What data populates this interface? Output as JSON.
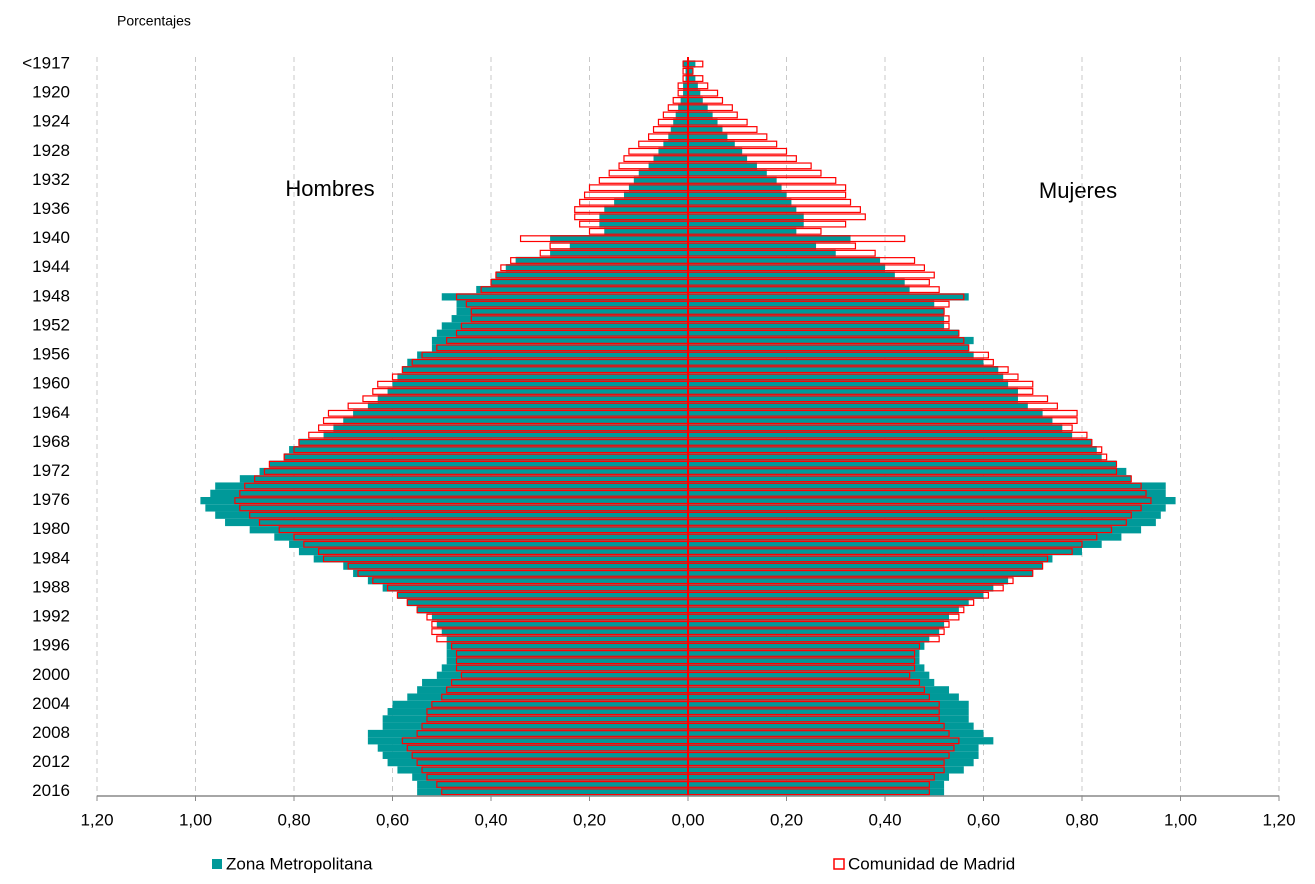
{
  "chart_data": {
    "type": "pyramid",
    "axis_label": "Porcentajes",
    "left_label": "Hombres",
    "right_label": "Mujeres",
    "categories": [
      "<1917",
      null,
      null,
      null,
      "1920",
      null,
      null,
      null,
      "1924",
      null,
      null,
      null,
      "1928",
      null,
      null,
      null,
      "1932",
      null,
      null,
      null,
      "1936",
      null,
      null,
      null,
      "1940",
      null,
      null,
      null,
      "1944",
      null,
      null,
      null,
      "1948",
      null,
      null,
      null,
      "1952",
      null,
      null,
      null,
      "1956",
      null,
      null,
      null,
      "1960",
      null,
      null,
      null,
      "1964",
      null,
      null,
      null,
      "1968",
      null,
      null,
      null,
      "1972",
      null,
      null,
      null,
      "1976",
      null,
      null,
      null,
      "1980",
      null,
      null,
      null,
      "1984",
      null,
      null,
      null,
      "1988",
      null,
      null,
      null,
      "1992",
      null,
      null,
      null,
      "1996",
      null,
      null,
      null,
      "2000",
      null,
      null,
      null,
      "2004",
      null,
      null,
      null,
      "2008",
      null,
      null,
      null,
      "2012",
      null,
      null,
      null,
      "2016"
    ],
    "series": [
      {
        "name": "Zona Metropolitana",
        "color": "#009999",
        "style": "fill",
        "left": [
          -0.01,
          -0.005,
          -0.005,
          -0.01,
          -0.01,
          -0.015,
          -0.02,
          -0.025,
          -0.03,
          -0.035,
          -0.04,
          -0.05,
          -0.06,
          -0.07,
          -0.08,
          -0.1,
          -0.11,
          -0.12,
          -0.13,
          -0.15,
          -0.17,
          -0.18,
          -0.18,
          -0.17,
          -0.28,
          -0.24,
          -0.28,
          -0.35,
          -0.37,
          -0.39,
          -0.4,
          -0.43,
          -0.5,
          -0.47,
          -0.47,
          -0.48,
          -0.5,
          -0.51,
          -0.52,
          -0.52,
          -0.55,
          -0.57,
          -0.58,
          -0.59,
          -0.6,
          -0.61,
          -0.63,
          -0.65,
          -0.68,
          -0.7,
          -0.72,
          -0.74,
          -0.79,
          -0.81,
          -0.82,
          -0.85,
          -0.87,
          -0.91,
          -0.96,
          -0.97,
          -0.99,
          -0.98,
          -0.96,
          -0.94,
          -0.89,
          -0.84,
          -0.81,
          -0.79,
          -0.76,
          -0.7,
          -0.68,
          -0.65,
          -0.62,
          -0.59,
          -0.57,
          -0.55,
          -0.52,
          -0.51,
          -0.5,
          -0.49,
          -0.49,
          -0.49,
          -0.49,
          -0.5,
          -0.51,
          -0.54,
          -0.55,
          -0.57,
          -0.6,
          -0.61,
          -0.62,
          -0.62,
          -0.65,
          -0.65,
          -0.63,
          -0.62,
          -0.61,
          -0.59,
          -0.56,
          -0.55,
          -0.55
        ],
        "right": [
          0.015,
          0.01,
          0.015,
          0.02,
          0.025,
          0.03,
          0.04,
          0.05,
          0.06,
          0.07,
          0.08,
          0.095,
          0.11,
          0.12,
          0.14,
          0.16,
          0.18,
          0.19,
          0.2,
          0.21,
          0.22,
          0.235,
          0.235,
          0.22,
          0.33,
          0.26,
          0.3,
          0.39,
          0.4,
          0.42,
          0.44,
          0.45,
          0.57,
          0.5,
          0.52,
          0.52,
          0.52,
          0.55,
          0.58,
          0.57,
          0.58,
          0.6,
          0.63,
          0.64,
          0.65,
          0.67,
          0.67,
          0.69,
          0.72,
          0.74,
          0.76,
          0.78,
          0.82,
          0.83,
          0.84,
          0.87,
          0.89,
          0.9,
          0.97,
          0.97,
          0.99,
          0.97,
          0.96,
          0.95,
          0.92,
          0.88,
          0.84,
          0.8,
          0.74,
          0.72,
          0.7,
          0.65,
          0.62,
          0.6,
          0.57,
          0.55,
          0.53,
          0.52,
          0.51,
          0.49,
          0.48,
          0.47,
          0.47,
          0.48,
          0.49,
          0.5,
          0.53,
          0.55,
          0.57,
          0.57,
          0.57,
          0.58,
          0.6,
          0.62,
          0.59,
          0.59,
          0.58,
          0.56,
          0.53,
          0.52,
          0.52
        ]
      },
      {
        "name": "Comunidad de Madrid",
        "color": "#ff0000",
        "style": "outline",
        "left": [
          -0.01,
          -0.01,
          -0.01,
          -0.02,
          -0.02,
          -0.03,
          -0.04,
          -0.05,
          -0.06,
          -0.07,
          -0.08,
          -0.1,
          -0.12,
          -0.13,
          -0.14,
          -0.16,
          -0.18,
          -0.2,
          -0.21,
          -0.22,
          -0.23,
          -0.23,
          -0.22,
          -0.2,
          -0.34,
          -0.28,
          -0.3,
          -0.36,
          -0.38,
          -0.39,
          -0.4,
          -0.42,
          -0.47,
          -0.45,
          -0.44,
          -0.44,
          -0.46,
          -0.47,
          -0.49,
          -0.51,
          -0.54,
          -0.56,
          -0.58,
          -0.6,
          -0.63,
          -0.64,
          -0.66,
          -0.69,
          -0.73,
          -0.74,
          -0.75,
          -0.77,
          -0.79,
          -0.8,
          -0.82,
          -0.85,
          -0.86,
          -0.88,
          -0.9,
          -0.91,
          -0.92,
          -0.91,
          -0.89,
          -0.87,
          -0.83,
          -0.8,
          -0.78,
          -0.75,
          -0.74,
          -0.69,
          -0.67,
          -0.64,
          -0.61,
          -0.59,
          -0.57,
          -0.55,
          -0.53,
          -0.52,
          -0.52,
          -0.51,
          -0.48,
          -0.47,
          -0.47,
          -0.47,
          -0.46,
          -0.48,
          -0.49,
          -0.5,
          -0.52,
          -0.53,
          -0.53,
          -0.54,
          -0.55,
          -0.58,
          -0.57,
          -0.56,
          -0.55,
          -0.54,
          -0.53,
          -0.51,
          -0.5
        ],
        "right": [
          0.03,
          0.01,
          0.03,
          0.04,
          0.06,
          0.07,
          0.09,
          0.1,
          0.12,
          0.14,
          0.16,
          0.18,
          0.2,
          0.22,
          0.25,
          0.27,
          0.3,
          0.32,
          0.32,
          0.33,
          0.35,
          0.36,
          0.32,
          0.27,
          0.44,
          0.34,
          0.38,
          0.46,
          0.48,
          0.5,
          0.49,
          0.51,
          0.56,
          0.53,
          0.52,
          0.53,
          0.53,
          0.55,
          0.56,
          0.57,
          0.61,
          0.62,
          0.65,
          0.67,
          0.7,
          0.7,
          0.73,
          0.75,
          0.79,
          0.79,
          0.78,
          0.81,
          0.82,
          0.84,
          0.85,
          0.87,
          0.87,
          0.9,
          0.92,
          0.93,
          0.94,
          0.92,
          0.9,
          0.89,
          0.86,
          0.83,
          0.8,
          0.78,
          0.73,
          0.72,
          0.7,
          0.66,
          0.64,
          0.61,
          0.58,
          0.56,
          0.55,
          0.53,
          0.52,
          0.51,
          0.47,
          0.46,
          0.46,
          0.46,
          0.45,
          0.47,
          0.48,
          0.49,
          0.51,
          0.51,
          0.51,
          0.52,
          0.53,
          0.55,
          0.54,
          0.53,
          0.52,
          0.52,
          0.5,
          0.49,
          0.49
        ]
      }
    ],
    "xlim": [
      -1.2,
      1.2
    ],
    "xticks": [
      {
        "value": -1.2,
        "label": "1,20"
      },
      {
        "value": -1.0,
        "label": "1,00"
      },
      {
        "value": -0.8,
        "label": "0,80"
      },
      {
        "value": -0.6,
        "label": "0,60"
      },
      {
        "value": -0.4,
        "label": "0,40"
      },
      {
        "value": -0.2,
        "label": "0,20"
      },
      {
        "value": 0,
        "label": "0,00"
      },
      {
        "value": 0.2,
        "label": "0,20"
      },
      {
        "value": 0.4,
        "label": "0,40"
      },
      {
        "value": 0.6,
        "label": "0,60"
      },
      {
        "value": 0.8,
        "label": "0,80"
      },
      {
        "value": 1.0,
        "label": "1,00"
      },
      {
        "value": 1.2,
        "label": "1,20"
      }
    ],
    "grid": true
  }
}
